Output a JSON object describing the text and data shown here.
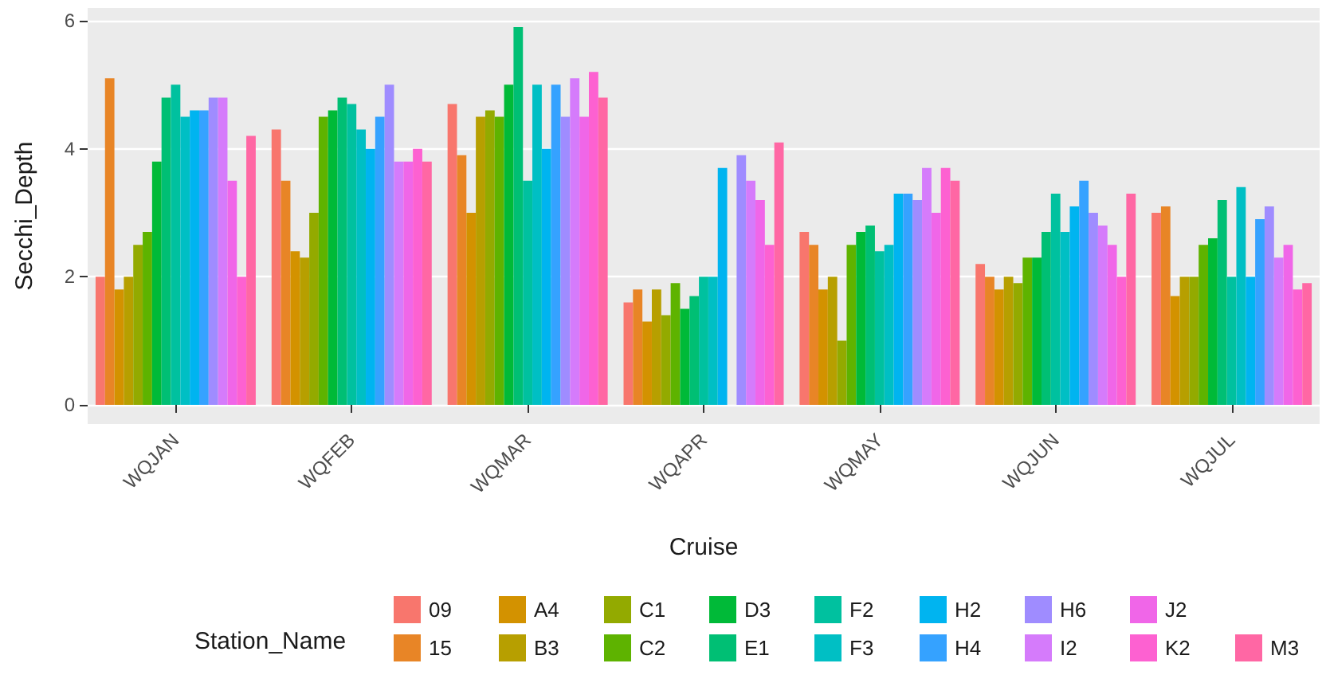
{
  "chart_data": {
    "type": "bar",
    "xlabel": "Cruise",
    "ylabel": "Secchi_Depth",
    "legend_title": "Station_Name",
    "categories": [
      "WQJAN",
      "WQFEB",
      "WQMAR",
      "WQAPR",
      "WQMAY",
      "WQJUN",
      "WQJUL"
    ],
    "ylim": [
      -0.3,
      6.2
    ],
    "yticks": [
      0,
      2,
      4,
      6
    ],
    "grid": "y",
    "legend": "bottom",
    "series": [
      {
        "name": "09",
        "color": "#f8766d",
        "values": [
          2.0,
          4.3,
          4.7,
          1.6,
          2.7,
          2.2,
          3.0
        ]
      },
      {
        "name": "15",
        "color": "#e88526",
        "values": [
          5.1,
          3.5,
          3.9,
          1.8,
          2.5,
          2.0,
          3.1
        ]
      },
      {
        "name": "A4",
        "color": "#d39200",
        "values": [
          1.8,
          2.4,
          3.0,
          1.3,
          1.8,
          1.8,
          1.7
        ]
      },
      {
        "name": "B3",
        "color": "#b79f00",
        "values": [
          2.0,
          2.3,
          4.5,
          1.8,
          2.0,
          2.0,
          2.0
        ]
      },
      {
        "name": "C1",
        "color": "#93aa00",
        "values": [
          2.5,
          3.0,
          4.6,
          1.4,
          1.0,
          1.9,
          2.0
        ]
      },
      {
        "name": "C2",
        "color": "#5eb300",
        "values": [
          2.7,
          4.5,
          4.5,
          1.9,
          2.5,
          2.3,
          2.5
        ]
      },
      {
        "name": "D3",
        "color": "#00ba38",
        "values": [
          3.8,
          4.6,
          5.0,
          1.5,
          2.7,
          2.3,
          2.6
        ]
      },
      {
        "name": "E1",
        "color": "#00bf74",
        "values": [
          4.8,
          4.8,
          5.9,
          1.7,
          2.8,
          2.7,
          3.2
        ]
      },
      {
        "name": "F2",
        "color": "#00c19f",
        "values": [
          5.0,
          4.7,
          3.5,
          2.0,
          2.4,
          3.3,
          2.0
        ]
      },
      {
        "name": "F3",
        "color": "#00bfc4",
        "values": [
          4.5,
          4.3,
          5.0,
          2.0,
          2.5,
          2.7,
          3.4
        ]
      },
      {
        "name": "H2",
        "color": "#00b4f0",
        "values": [
          4.6,
          4.0,
          4.0,
          3.7,
          3.3,
          3.1,
          2.0
        ]
      },
      {
        "name": "H4",
        "color": "#35a2ff",
        "values": [
          4.6,
          4.5,
          5.0,
          null,
          3.3,
          3.5,
          2.9
        ]
      },
      {
        "name": "H6",
        "color": "#9f8cff",
        "values": [
          4.8,
          5.0,
          4.5,
          3.9,
          3.2,
          3.0,
          3.1
        ]
      },
      {
        "name": "I2",
        "color": "#d57bfb",
        "values": [
          4.8,
          3.8,
          5.1,
          3.5,
          3.7,
          2.8,
          2.3
        ]
      },
      {
        "name": "J2",
        "color": "#f066e8",
        "values": [
          3.5,
          3.8,
          4.5,
          3.2,
          3.0,
          2.5,
          2.5
        ]
      },
      {
        "name": "K2",
        "color": "#fd61d1",
        "values": [
          2.0,
          4.0,
          5.2,
          2.5,
          3.7,
          2.0,
          1.8
        ]
      },
      {
        "name": "M3",
        "color": "#ff67a4",
        "values": [
          4.2,
          3.8,
          4.8,
          4.1,
          3.5,
          3.3,
          1.9
        ]
      }
    ]
  }
}
